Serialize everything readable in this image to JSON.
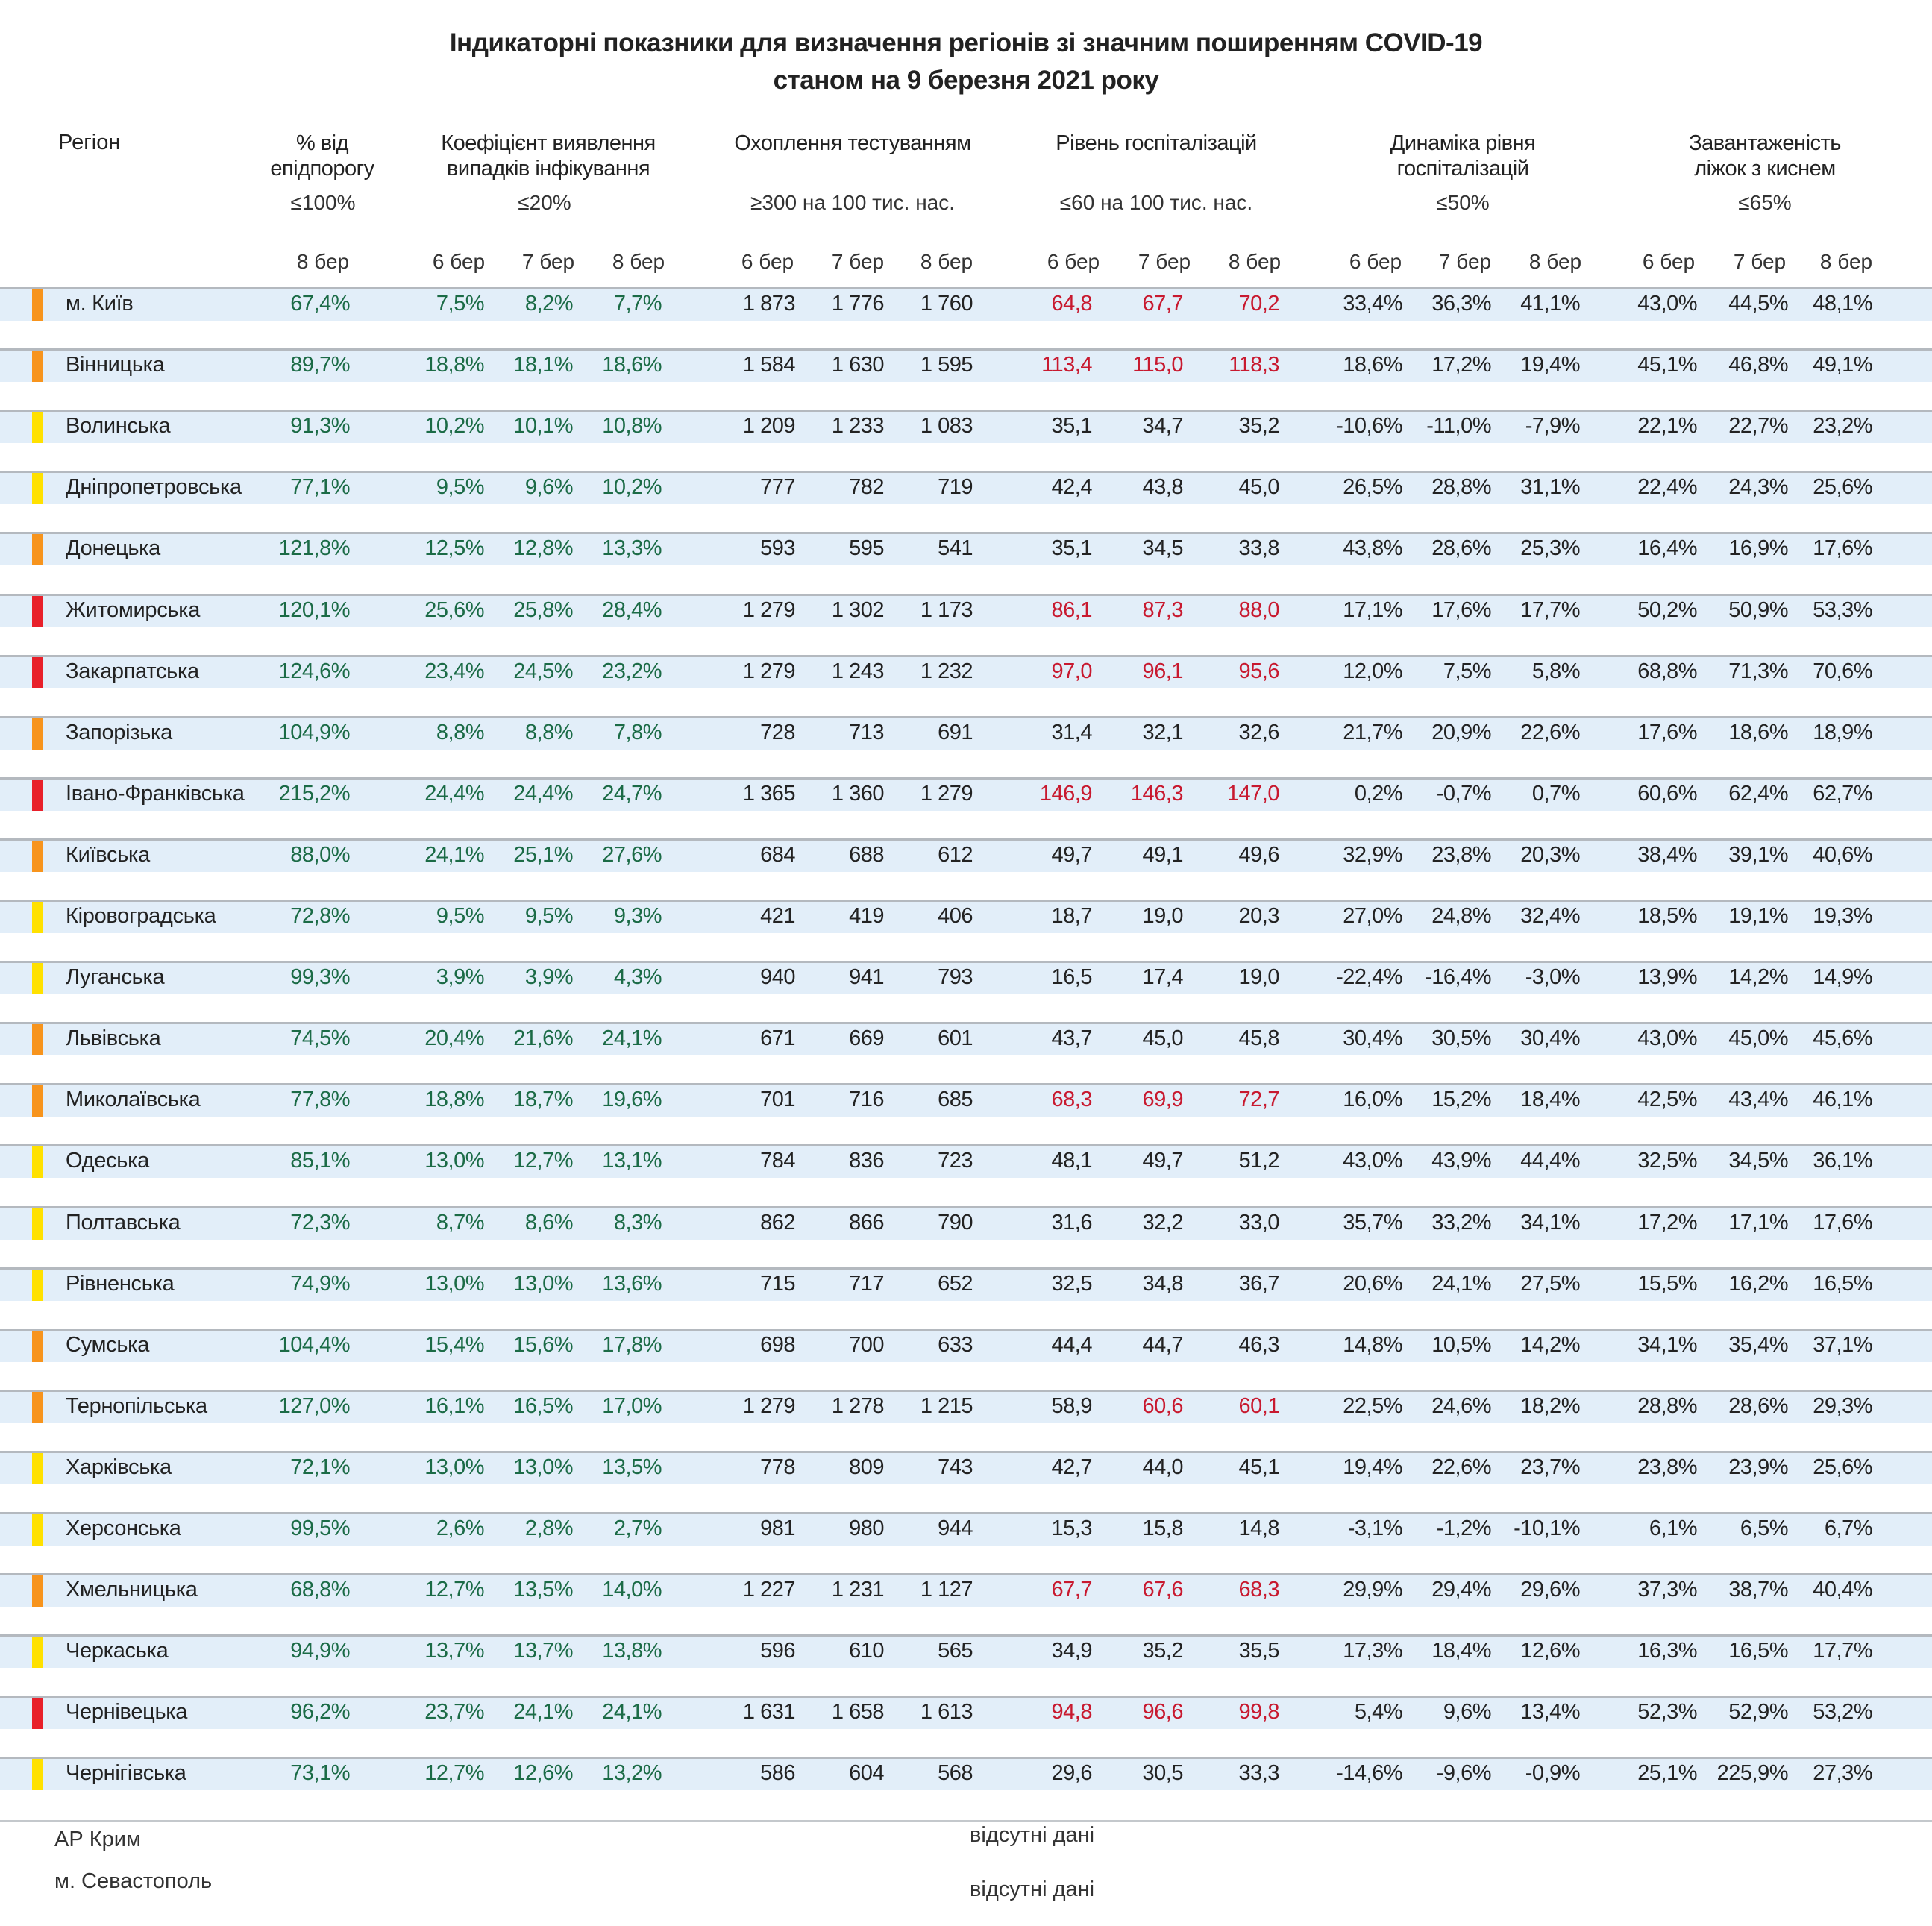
{
  "title": {
    "line1": "Індикаторні показники для визначення регіонів зі значним поширенням COVID-19",
    "line2": "станом на 9 березня 2021 року"
  },
  "headers": {
    "region": "Регіон",
    "epi_line1": "% від",
    "epi_line2": "епідпорогу",
    "detect_line1": "Коефіцієнт виявлення",
    "detect_line2": "випадків інфікування",
    "testing": "Охоплення тестуванням",
    "hosp": "Рівень госпіталізацій",
    "dyn_line1": "Динаміка рівня",
    "dyn_line2": "госпіталізацій",
    "beds_line1": "Завантаженість",
    "beds_line2": "ліжок з киснем"
  },
  "thresholds": {
    "epi": "≤100%",
    "detect": "≤20%",
    "testing": "≥300 на 100 тис. нас.",
    "hosp": "≤60 на 100 тис. нас.",
    "dyn": "≤50%",
    "beds": "≤65%"
  },
  "dates": {
    "d6": "6 бер",
    "d7": "7 бер",
    "d8": "8 бер"
  },
  "colors": {
    "orange": "#f7941d",
    "yellow": "#ffe100",
    "red": "#e8202a",
    "good_value": "#1b6b46",
    "alert_value": "#c8192f"
  },
  "rows": [
    {
      "region": "м. Київ",
      "level": "orange",
      "epi": "67,4%",
      "detect": [
        "7,5%",
        "8,2%",
        "7,7%"
      ],
      "testing": [
        "1 873",
        "1 776",
        "1 760"
      ],
      "hosp": [
        "64,8",
        "67,7",
        "70,2"
      ],
      "dyn": [
        "33,4%",
        "36,3%",
        "41,1%"
      ],
      "beds": [
        "43,0%",
        "44,5%",
        "48,1%"
      ]
    },
    {
      "region": "Вінницька",
      "level": "orange",
      "epi": "89,7%",
      "detect": [
        "18,8%",
        "18,1%",
        "18,6%"
      ],
      "testing": [
        "1 584",
        "1 630",
        "1 595"
      ],
      "hosp": [
        "113,4",
        "115,0",
        "118,3"
      ],
      "dyn": [
        "18,6%",
        "17,2%",
        "19,4%"
      ],
      "beds": [
        "45,1%",
        "46,8%",
        "49,1%"
      ]
    },
    {
      "region": "Волинська",
      "level": "yellow",
      "epi": "91,3%",
      "detect": [
        "10,2%",
        "10,1%",
        "10,8%"
      ],
      "testing": [
        "1 209",
        "1 233",
        "1 083"
      ],
      "hosp": [
        "35,1",
        "34,7",
        "35,2"
      ],
      "dyn": [
        "-10,6%",
        "-11,0%",
        "-7,9%"
      ],
      "beds": [
        "22,1%",
        "22,7%",
        "23,2%"
      ]
    },
    {
      "region": "Дніпропетровська",
      "level": "yellow",
      "epi": "77,1%",
      "detect": [
        "9,5%",
        "9,6%",
        "10,2%"
      ],
      "testing": [
        "777",
        "782",
        "719"
      ],
      "hosp": [
        "42,4",
        "43,8",
        "45,0"
      ],
      "dyn": [
        "26,5%",
        "28,8%",
        "31,1%"
      ],
      "beds": [
        "22,4%",
        "24,3%",
        "25,6%"
      ]
    },
    {
      "region": "Донецька",
      "level": "orange",
      "epi": "121,8%",
      "detect": [
        "12,5%",
        "12,8%",
        "13,3%"
      ],
      "testing": [
        "593",
        "595",
        "541"
      ],
      "hosp": [
        "35,1",
        "34,5",
        "33,8"
      ],
      "dyn": [
        "43,8%",
        "28,6%",
        "25,3%"
      ],
      "beds": [
        "16,4%",
        "16,9%",
        "17,6%"
      ]
    },
    {
      "region": "Житомирська",
      "level": "red",
      "epi": "120,1%",
      "detect": [
        "25,6%",
        "25,8%",
        "28,4%"
      ],
      "testing": [
        "1 279",
        "1 302",
        "1 173"
      ],
      "hosp": [
        "86,1",
        "87,3",
        "88,0"
      ],
      "dyn": [
        "17,1%",
        "17,6%",
        "17,7%"
      ],
      "beds": [
        "50,2%",
        "50,9%",
        "53,3%"
      ]
    },
    {
      "region": "Закарпатська",
      "level": "red",
      "epi": "124,6%",
      "detect": [
        "23,4%",
        "24,5%",
        "23,2%"
      ],
      "testing": [
        "1 279",
        "1 243",
        "1 232"
      ],
      "hosp": [
        "97,0",
        "96,1",
        "95,6"
      ],
      "dyn": [
        "12,0%",
        "7,5%",
        "5,8%"
      ],
      "beds": [
        "68,8%",
        "71,3%",
        "70,6%"
      ]
    },
    {
      "region": "Запорізька",
      "level": "orange",
      "epi": "104,9%",
      "detect": [
        "8,8%",
        "8,8%",
        "7,8%"
      ],
      "testing": [
        "728",
        "713",
        "691"
      ],
      "hosp": [
        "31,4",
        "32,1",
        "32,6"
      ],
      "dyn": [
        "21,7%",
        "20,9%",
        "22,6%"
      ],
      "beds": [
        "17,6%",
        "18,6%",
        "18,9%"
      ]
    },
    {
      "region": "Івано-Франківська",
      "level": "red",
      "epi": "215,2%",
      "detect": [
        "24,4%",
        "24,4%",
        "24,7%"
      ],
      "testing": [
        "1 365",
        "1 360",
        "1 279"
      ],
      "hosp": [
        "146,9",
        "146,3",
        "147,0"
      ],
      "dyn": [
        "0,2%",
        "-0,7%",
        "0,7%"
      ],
      "beds": [
        "60,6%",
        "62,4%",
        "62,7%"
      ]
    },
    {
      "region": "Київська",
      "level": "orange",
      "epi": "88,0%",
      "detect": [
        "24,1%",
        "25,1%",
        "27,6%"
      ],
      "testing": [
        "684",
        "688",
        "612"
      ],
      "hosp": [
        "49,7",
        "49,1",
        "49,6"
      ],
      "dyn": [
        "32,9%",
        "23,8%",
        "20,3%"
      ],
      "beds": [
        "38,4%",
        "39,1%",
        "40,6%"
      ]
    },
    {
      "region": "Кіровоградська",
      "level": "yellow",
      "epi": "72,8%",
      "detect": [
        "9,5%",
        "9,5%",
        "9,3%"
      ],
      "testing": [
        "421",
        "419",
        "406"
      ],
      "hosp": [
        "18,7",
        "19,0",
        "20,3"
      ],
      "dyn": [
        "27,0%",
        "24,8%",
        "32,4%"
      ],
      "beds": [
        "18,5%",
        "19,1%",
        "19,3%"
      ]
    },
    {
      "region": "Луганська",
      "level": "yellow",
      "epi": "99,3%",
      "detect": [
        "3,9%",
        "3,9%",
        "4,3%"
      ],
      "testing": [
        "940",
        "941",
        "793"
      ],
      "hosp": [
        "16,5",
        "17,4",
        "19,0"
      ],
      "dyn": [
        "-22,4%",
        "-16,4%",
        "-3,0%"
      ],
      "beds": [
        "13,9%",
        "14,2%",
        "14,9%"
      ]
    },
    {
      "region": "Львівська",
      "level": "orange",
      "epi": "74,5%",
      "detect": [
        "20,4%",
        "21,6%",
        "24,1%"
      ],
      "testing": [
        "671",
        "669",
        "601"
      ],
      "hosp": [
        "43,7",
        "45,0",
        "45,8"
      ],
      "dyn": [
        "30,4%",
        "30,5%",
        "30,4%"
      ],
      "beds": [
        "43,0%",
        "45,0%",
        "45,6%"
      ]
    },
    {
      "region": "Миколаївська",
      "level": "orange",
      "epi": "77,8%",
      "detect": [
        "18,8%",
        "18,7%",
        "19,6%"
      ],
      "testing": [
        "701",
        "716",
        "685"
      ],
      "hosp": [
        "68,3",
        "69,9",
        "72,7"
      ],
      "dyn": [
        "16,0%",
        "15,2%",
        "18,4%"
      ],
      "beds": [
        "42,5%",
        "43,4%",
        "46,1%"
      ]
    },
    {
      "region": "Одеська",
      "level": "yellow",
      "epi": "85,1%",
      "detect": [
        "13,0%",
        "12,7%",
        "13,1%"
      ],
      "testing": [
        "784",
        "836",
        "723"
      ],
      "hosp": [
        "48,1",
        "49,7",
        "51,2"
      ],
      "dyn": [
        "43,0%",
        "43,9%",
        "44,4%"
      ],
      "beds": [
        "32,5%",
        "34,5%",
        "36,1%"
      ]
    },
    {
      "region": "Полтавська",
      "level": "yellow",
      "epi": "72,3%",
      "detect": [
        "8,7%",
        "8,6%",
        "8,3%"
      ],
      "testing": [
        "862",
        "866",
        "790"
      ],
      "hosp": [
        "31,6",
        "32,2",
        "33,0"
      ],
      "dyn": [
        "35,7%",
        "33,2%",
        "34,1%"
      ],
      "beds": [
        "17,2%",
        "17,1%",
        "17,6%"
      ]
    },
    {
      "region": "Рівненська",
      "level": "yellow",
      "epi": "74,9%",
      "detect": [
        "13,0%",
        "13,0%",
        "13,6%"
      ],
      "testing": [
        "715",
        "717",
        "652"
      ],
      "hosp": [
        "32,5",
        "34,8",
        "36,7"
      ],
      "dyn": [
        "20,6%",
        "24,1%",
        "27,5%"
      ],
      "beds": [
        "15,5%",
        "16,2%",
        "16,5%"
      ]
    },
    {
      "region": "Сумська",
      "level": "orange",
      "epi": "104,4%",
      "detect": [
        "15,4%",
        "15,6%",
        "17,8%"
      ],
      "testing": [
        "698",
        "700",
        "633"
      ],
      "hosp": [
        "44,4",
        "44,7",
        "46,3"
      ],
      "dyn": [
        "14,8%",
        "10,5%",
        "14,2%"
      ],
      "beds": [
        "34,1%",
        "35,4%",
        "37,1%"
      ]
    },
    {
      "region": "Тернопільська",
      "level": "orange",
      "epi": "127,0%",
      "detect": [
        "16,1%",
        "16,5%",
        "17,0%"
      ],
      "testing": [
        "1 279",
        "1 278",
        "1 215"
      ],
      "hosp": [
        "58,9",
        "60,6",
        "60,1"
      ],
      "dyn": [
        "22,5%",
        "24,6%",
        "18,2%"
      ],
      "beds": [
        "28,8%",
        "28,6%",
        "29,3%"
      ]
    },
    {
      "region": "Харківська",
      "level": "yellow",
      "epi": "72,1%",
      "detect": [
        "13,0%",
        "13,0%",
        "13,5%"
      ],
      "testing": [
        "778",
        "809",
        "743"
      ],
      "hosp": [
        "42,7",
        "44,0",
        "45,1"
      ],
      "dyn": [
        "19,4%",
        "22,6%",
        "23,7%"
      ],
      "beds": [
        "23,8%",
        "23,9%",
        "25,6%"
      ]
    },
    {
      "region": "Херсонська",
      "level": "yellow",
      "epi": "99,5%",
      "detect": [
        "2,6%",
        "2,8%",
        "2,7%"
      ],
      "testing": [
        "981",
        "980",
        "944"
      ],
      "hosp": [
        "15,3",
        "15,8",
        "14,8"
      ],
      "dyn": [
        "-3,1%",
        "-1,2%",
        "-10,1%"
      ],
      "beds": [
        "6,1%",
        "6,5%",
        "6,7%"
      ]
    },
    {
      "region": "Хмельницька",
      "level": "orange",
      "epi": "68,8%",
      "detect": [
        "12,7%",
        "13,5%",
        "14,0%"
      ],
      "testing": [
        "1 227",
        "1 231",
        "1 127"
      ],
      "hosp": [
        "67,7",
        "67,6",
        "68,3"
      ],
      "dyn": [
        "29,9%",
        "29,4%",
        "29,6%"
      ],
      "beds": [
        "37,3%",
        "38,7%",
        "40,4%"
      ]
    },
    {
      "region": "Черкаська",
      "level": "yellow",
      "epi": "94,9%",
      "detect": [
        "13,7%",
        "13,7%",
        "13,8%"
      ],
      "testing": [
        "596",
        "610",
        "565"
      ],
      "hosp": [
        "34,9",
        "35,2",
        "35,5"
      ],
      "dyn": [
        "17,3%",
        "18,4%",
        "12,6%"
      ],
      "beds": [
        "16,3%",
        "16,5%",
        "17,7%"
      ]
    },
    {
      "region": "Чернівецька",
      "level": "red",
      "epi": "96,2%",
      "detect": [
        "23,7%",
        "24,1%",
        "24,1%"
      ],
      "testing": [
        "1 631",
        "1 658",
        "1 613"
      ],
      "hosp": [
        "94,8",
        "96,6",
        "99,8"
      ],
      "dyn": [
        "5,4%",
        "9,6%",
        "13,4%"
      ],
      "beds": [
        "52,3%",
        "52,9%",
        "53,2%"
      ]
    },
    {
      "region": "Чернігівська",
      "level": "yellow",
      "epi": "73,1%",
      "detect": [
        "12,7%",
        "12,6%",
        "13,2%"
      ],
      "testing": [
        "586",
        "604",
        "568"
      ],
      "hosp": [
        "29,6",
        "30,5",
        "33,3"
      ],
      "dyn": [
        "-14,6%",
        "-9,6%",
        "-0,9%"
      ],
      "beds": [
        "25,1%",
        "225,9%",
        "27,3%"
      ]
    }
  ],
  "footer": [
    {
      "region": "АР Крим",
      "note": "відсутні дані"
    },
    {
      "region": "м. Севастополь",
      "note": "відсутні дані"
    }
  ]
}
